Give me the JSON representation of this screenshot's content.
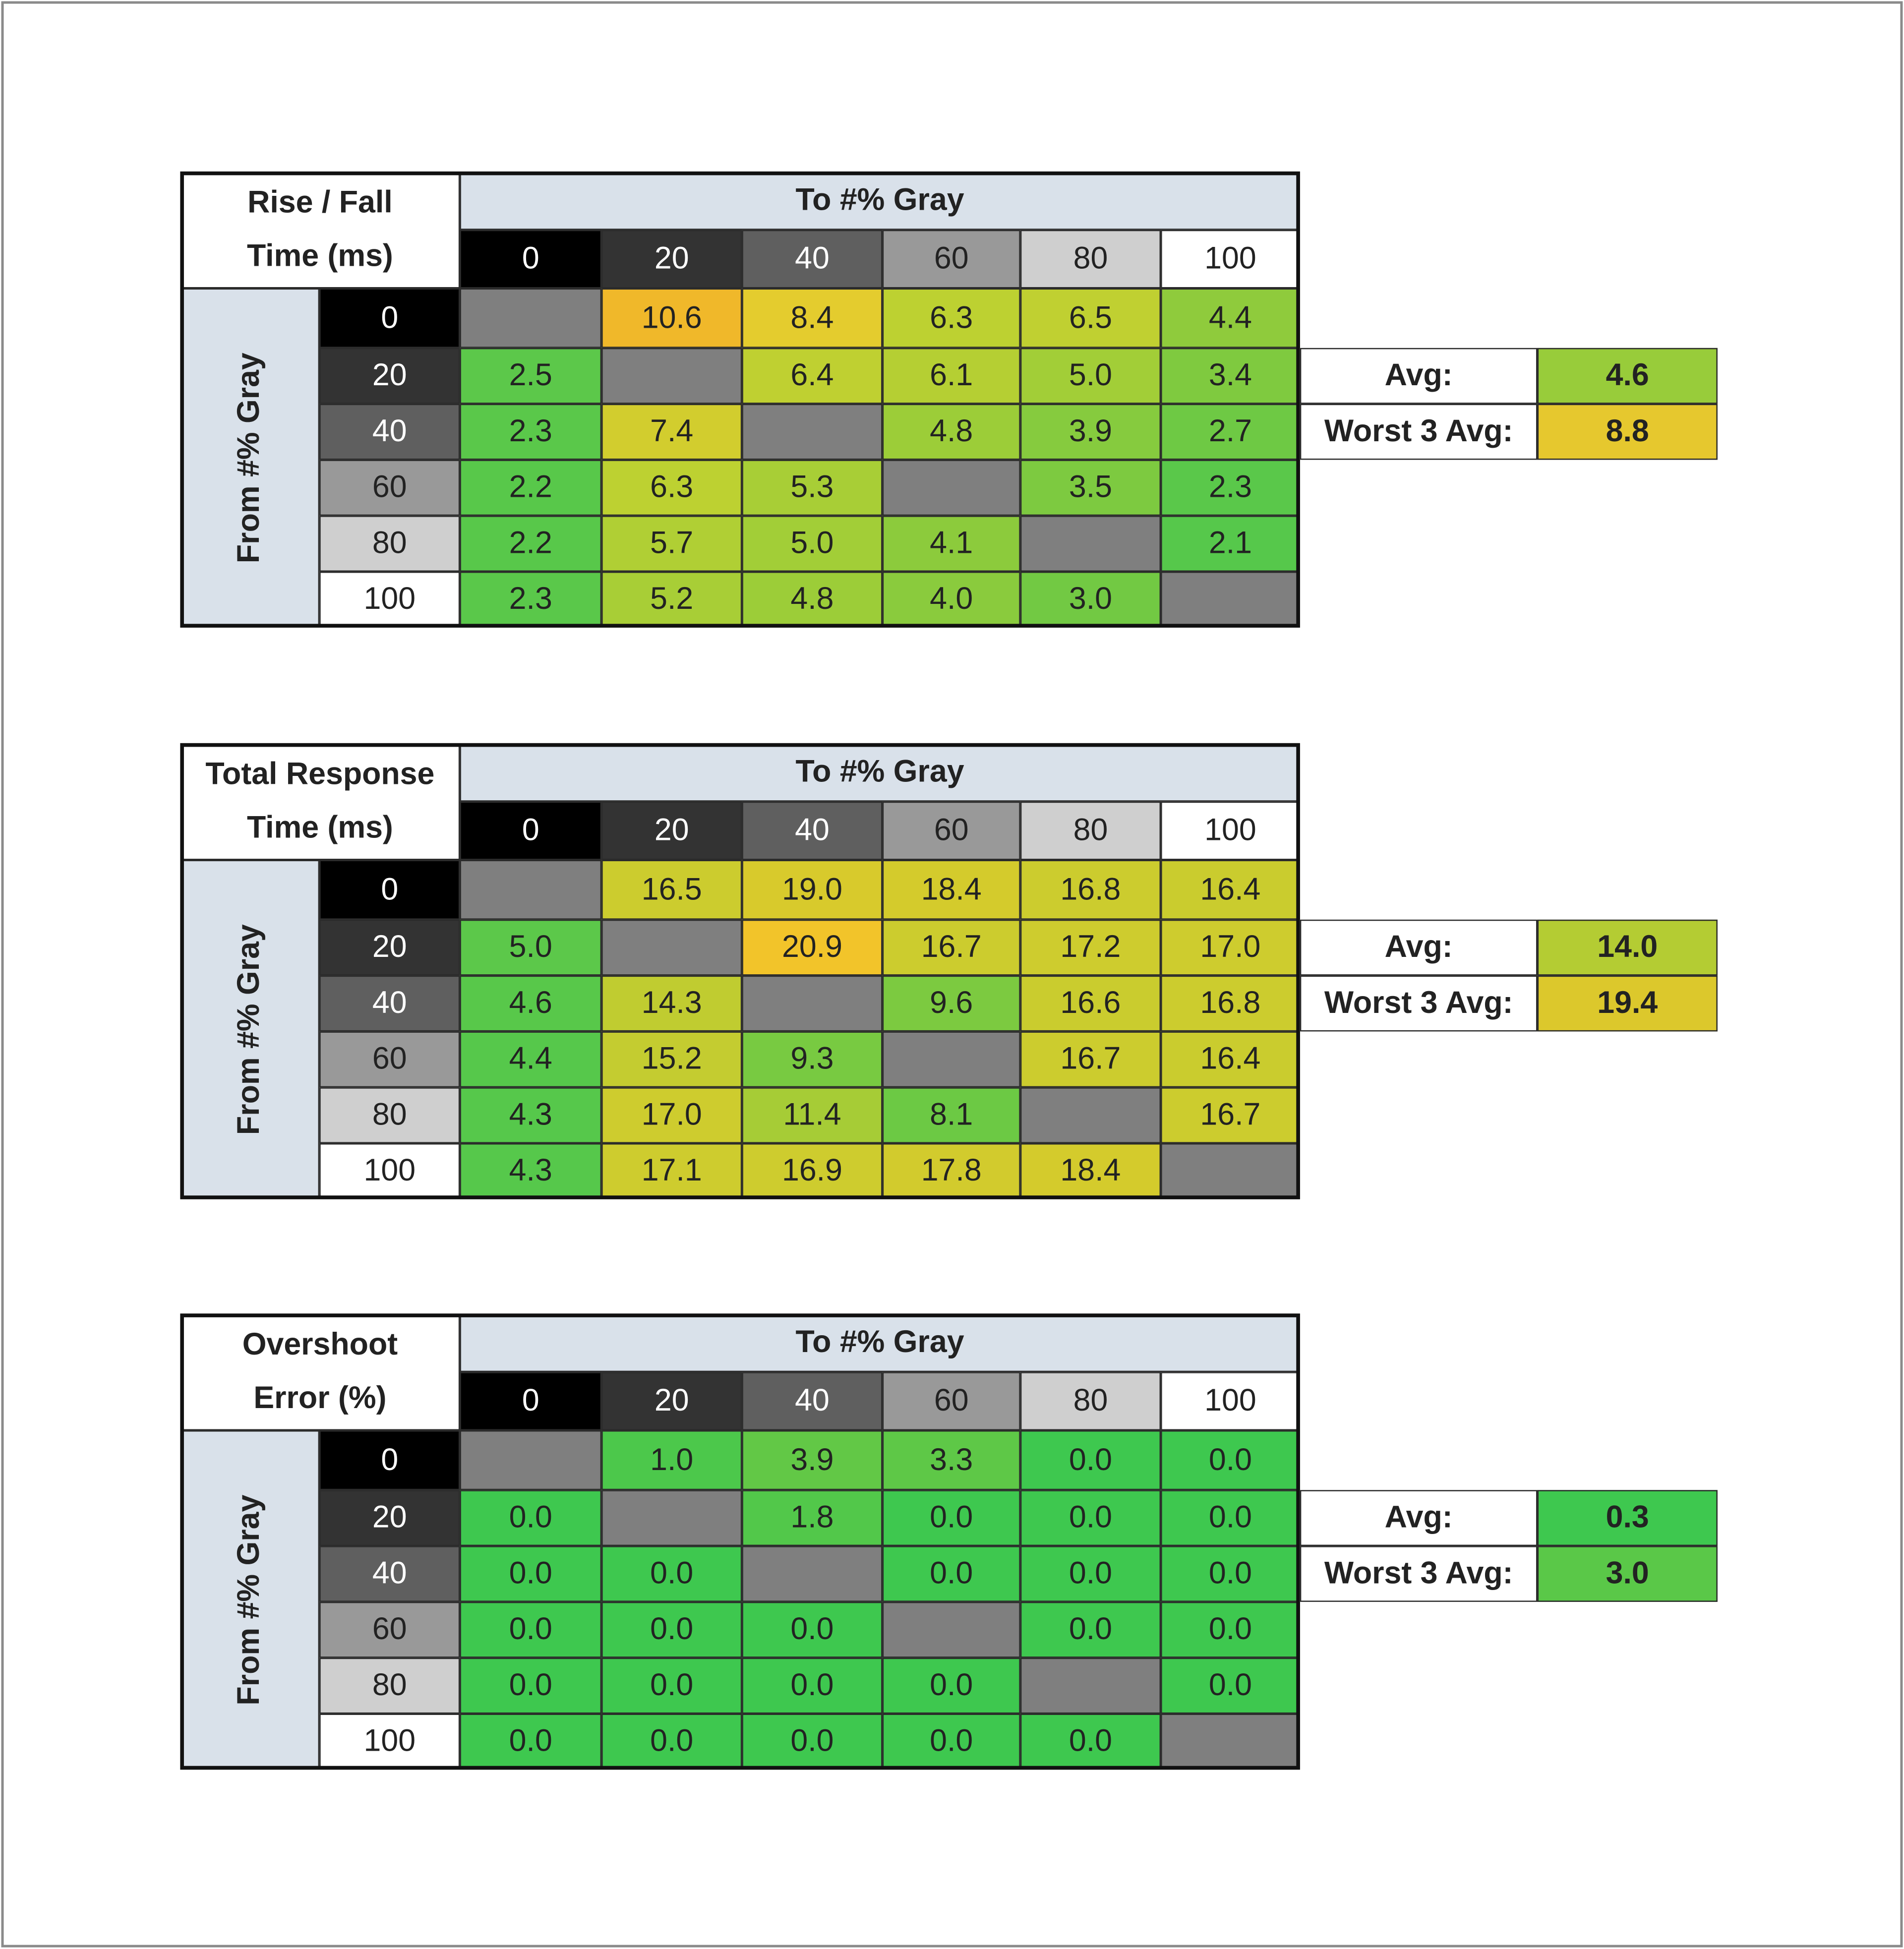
{
  "tables": [
    {
      "title": [
        "Rise / Fall",
        "Time (ms)"
      ],
      "column_header": "To #% Gray",
      "row_header": "From #% Gray",
      "columns": [
        "0",
        "20",
        "40",
        "60",
        "80",
        "100"
      ],
      "rows": [
        "0",
        "20",
        "40",
        "60",
        "80",
        "100"
      ],
      "cells": [
        [
          null,
          "10.6",
          "8.4",
          "6.3",
          "6.5",
          "4.4"
        ],
        [
          "2.5",
          null,
          "6.4",
          "6.1",
          "5.0",
          "3.4"
        ],
        [
          "2.3",
          "7.4",
          null,
          "4.8",
          "3.9",
          "2.7"
        ],
        [
          "2.2",
          "6.3",
          "5.3",
          null,
          "3.5",
          "2.3"
        ],
        [
          "2.2",
          "5.7",
          "5.0",
          "4.1",
          null,
          "2.1"
        ],
        [
          "2.3",
          "5.2",
          "4.8",
          "4.0",
          "3.0",
          null
        ]
      ],
      "cell_colors": [
        [
          null,
          "#f0b82a",
          "#e4cc2e",
          "#bdd131",
          "#c0d031",
          "#8fcb3c"
        ],
        [
          "#5cc84a",
          null,
          "#bfd031",
          "#b5cf33",
          "#a2ce37",
          "#7fca3f"
        ],
        [
          "#5ac84a",
          "#d2cd2e",
          null,
          "#9ccd38",
          "#86cb3e",
          "#6ec944"
        ],
        [
          "#58c84a",
          "#bdd131",
          "#a8ce36",
          null,
          "#7dca40",
          "#5ac84a"
        ],
        [
          "#58c84a",
          "#b0cf34",
          "#a2ce37",
          "#8ccb3c",
          null,
          "#56c84b"
        ],
        [
          "#5ac84a",
          "#a8ce36",
          "#9ccd38",
          "#8acb3d",
          "#72c943",
          null
        ]
      ],
      "avg_label": "Avg:",
      "avg": "4.6",
      "avg_color": "#98cc3a",
      "worst_label": "Worst 3 Avg:",
      "worst": "8.8",
      "worst_color": "#e6c82e"
    },
    {
      "title": [
        "Total Response",
        "Time (ms)"
      ],
      "column_header": "To #% Gray",
      "row_header": "From #% Gray",
      "columns": [
        "0",
        "20",
        "40",
        "60",
        "80",
        "100"
      ],
      "rows": [
        "0",
        "20",
        "40",
        "60",
        "80",
        "100"
      ],
      "cells": [
        [
          null,
          "16.5",
          "19.0",
          "18.4",
          "16.8",
          "16.4"
        ],
        [
          "5.0",
          null,
          "20.9",
          "16.7",
          "17.2",
          "17.0"
        ],
        [
          "4.6",
          "14.3",
          null,
          "9.6",
          "16.6",
          "16.8"
        ],
        [
          "4.4",
          "15.2",
          "9.3",
          null,
          "16.7",
          "16.4"
        ],
        [
          "4.3",
          "17.0",
          "11.4",
          "8.1",
          null,
          "16.7"
        ],
        [
          "4.3",
          "17.1",
          "16.9",
          "17.8",
          "18.4",
          null
        ]
      ],
      "cell_colors": [
        [
          null,
          "#cccc2e",
          "#d8ca2c",
          "#d4cb2c",
          "#cccc2e",
          "#cacc2e"
        ],
        [
          "#5cc84a",
          null,
          "#f2c42a",
          "#cccc2e",
          "#cecc2e",
          "#cecc2e"
        ],
        [
          "#58c84a",
          "#c0cc30",
          null,
          "#7cca40",
          "#cacc2e",
          "#cccc2e"
        ],
        [
          "#56c84b",
          "#c4cc30",
          "#78ca41",
          null,
          "#cccc2e",
          "#cacc2e"
        ],
        [
          "#56c84b",
          "#cecc2e",
          "#a6cc36",
          "#6cc944",
          null,
          "#cccc2e"
        ],
        [
          "#56c84b",
          "#cecc2e",
          "#cecc2e",
          "#d2cb2d",
          "#d4cb2c",
          null
        ]
      ],
      "avg_label": "Avg:",
      "avg": "14.0",
      "avg_color": "#b4cc33",
      "worst_label": "Worst 3 Avg:",
      "worst": "19.4",
      "worst_color": "#dcc82c"
    },
    {
      "title": [
        "Overshoot",
        "Error (%)"
      ],
      "column_header": "To #% Gray",
      "row_header": "From #% Gray",
      "columns": [
        "0",
        "20",
        "40",
        "60",
        "80",
        "100"
      ],
      "rows": [
        "0",
        "20",
        "40",
        "60",
        "80",
        "100"
      ],
      "cells": [
        [
          null,
          "1.0",
          "3.9",
          "3.3",
          "0.0",
          "0.0"
        ],
        [
          "0.0",
          null,
          "1.8",
          "0.0",
          "0.0",
          "0.0"
        ],
        [
          "0.0",
          "0.0",
          null,
          "0.0",
          "0.0",
          "0.0"
        ],
        [
          "0.0",
          "0.0",
          "0.0",
          null,
          "0.0",
          "0.0"
        ],
        [
          "0.0",
          "0.0",
          "0.0",
          "0.0",
          null,
          "0.0"
        ],
        [
          "0.0",
          "0.0",
          "0.0",
          "0.0",
          "0.0",
          null
        ]
      ],
      "cell_colors": [
        [
          null,
          "#4cc84b",
          "#62c846",
          "#5ec847",
          "#3ec84f",
          "#3ec84f"
        ],
        [
          "#3ec84f",
          null,
          "#52c84a",
          "#3ec84f",
          "#3ec84f",
          "#3ec84f"
        ],
        [
          "#3ec84f",
          "#3ec84f",
          null,
          "#3ec84f",
          "#3ec84f",
          "#3ec84f"
        ],
        [
          "#3ec84f",
          "#3ec84f",
          "#3ec84f",
          null,
          "#3ec84f",
          "#3ec84f"
        ],
        [
          "#3ec84f",
          "#3ec84f",
          "#3ec84f",
          "#3ec84f",
          null,
          "#3ec84f"
        ],
        [
          "#3ec84f",
          "#3ec84f",
          "#3ec84f",
          "#3ec84f",
          "#3ec84f",
          null
        ]
      ],
      "avg_label": "Avg:",
      "avg": "0.3",
      "avg_color": "#3ec84f",
      "worst_label": "Worst 3 Avg:",
      "worst": "3.0",
      "worst_color": "#5ac848"
    }
  ]
}
